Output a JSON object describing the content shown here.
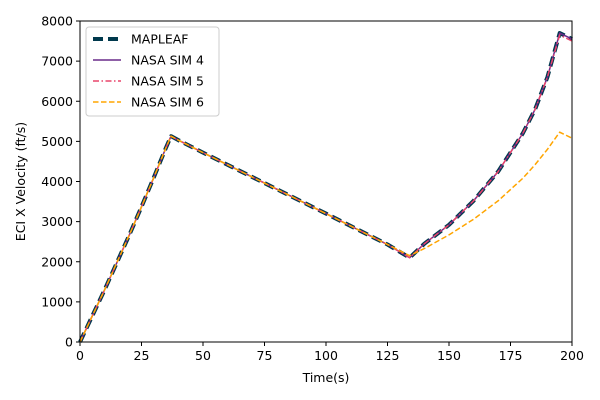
{
  "chart_data": {
    "type": "line",
    "title": "",
    "xlabel": "Time(s)",
    "ylabel": "ECI X Velocity (ft/s)",
    "xlim": [
      0,
      200
    ],
    "ylim": [
      0,
      8000
    ],
    "xticks": [
      "0",
      "25",
      "50",
      "75",
      "100",
      "125",
      "150",
      "175",
      "200"
    ],
    "yticks": [
      "0",
      "1000",
      "2000",
      "3000",
      "4000",
      "5000",
      "6000",
      "7000",
      "8000"
    ],
    "grid": false,
    "legend_position": "top-left",
    "series": [
      {
        "name": "MAPLEAF",
        "color": "#00394d",
        "style": "dashed-thick",
        "x": [
          0,
          5,
          10,
          15,
          20,
          25,
          30,
          35,
          37,
          40,
          50,
          75,
          100,
          125,
          134,
          140,
          150,
          160,
          170,
          180,
          185,
          190,
          195,
          200
        ],
        "y": [
          0,
          650,
          1300,
          1980,
          2660,
          3370,
          4100,
          4850,
          5130,
          5030,
          4720,
          3960,
          3200,
          2430,
          2100,
          2450,
          2920,
          3520,
          4250,
          5200,
          5800,
          6600,
          7700,
          7550
        ]
      },
      {
        "name": "NASA SIM 4",
        "color": "#6a2c8a",
        "style": "solid",
        "x": [
          0,
          5,
          10,
          15,
          20,
          25,
          30,
          35,
          37,
          40,
          50,
          75,
          100,
          125,
          134,
          140,
          150,
          160,
          170,
          180,
          185,
          190,
          195,
          200
        ],
        "y": [
          0,
          650,
          1300,
          1980,
          2660,
          3370,
          4100,
          4850,
          5130,
          5030,
          4720,
          3960,
          3200,
          2430,
          2100,
          2450,
          2920,
          3520,
          4250,
          5200,
          5800,
          6600,
          7700,
          7550
        ]
      },
      {
        "name": "NASA SIM 5",
        "color": "#e8456b",
        "style": "dashdot",
        "x": [
          0,
          5,
          10,
          15,
          20,
          25,
          30,
          35,
          37,
          40,
          50,
          75,
          100,
          125,
          134,
          140,
          150,
          160,
          170,
          180,
          185,
          190,
          195,
          200
        ],
        "y": [
          0,
          650,
          1300,
          1980,
          2660,
          3370,
          4100,
          4850,
          5130,
          5030,
          4720,
          3960,
          3200,
          2430,
          2100,
          2450,
          2920,
          3520,
          4250,
          5200,
          5800,
          6600,
          7650,
          7500
        ]
      },
      {
        "name": "NASA SIM 6",
        "color": "#ffa500",
        "style": "dashed",
        "x": [
          0,
          5,
          10,
          15,
          20,
          25,
          30,
          35,
          37,
          40,
          50,
          75,
          100,
          125,
          134,
          140,
          150,
          160,
          170,
          180,
          185,
          190,
          195,
          200
        ],
        "y": [
          0,
          650,
          1300,
          1980,
          2660,
          3370,
          4100,
          4850,
          5130,
          5030,
          4720,
          3960,
          3200,
          2430,
          2150,
          2330,
          2670,
          3060,
          3520,
          4080,
          4420,
          4800,
          5230,
          5080
        ]
      }
    ]
  }
}
